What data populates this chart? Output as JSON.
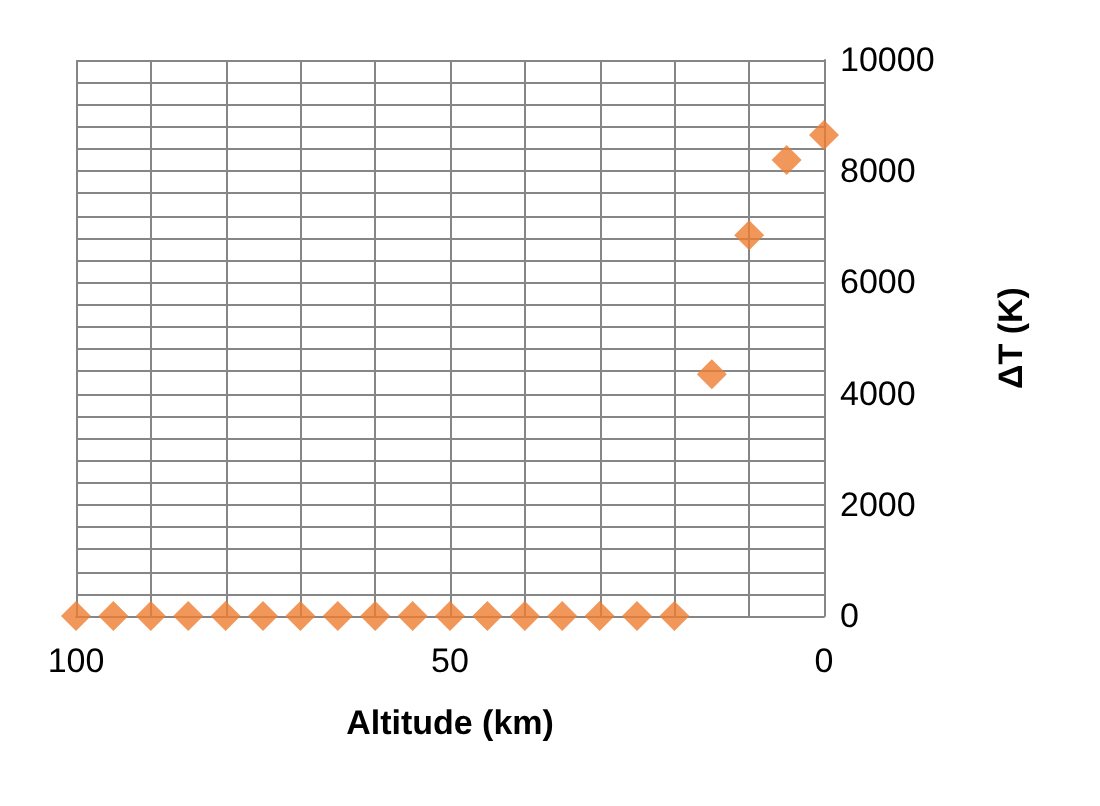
{
  "chart_data": {
    "type": "scatter",
    "xlabel": "Altitude (km)",
    "ylabel": "ΔT (K)",
    "x": [
      100,
      95,
      90,
      85,
      80,
      75,
      70,
      65,
      60,
      55,
      50,
      45,
      40,
      35,
      30,
      25,
      20,
      15,
      10,
      5,
      0
    ],
    "series": [
      {
        "color": "#ed7d31",
        "values": [
          0,
          0,
          0,
          0,
          0,
          0,
          0,
          0,
          0,
          0,
          0,
          0,
          0,
          0,
          0,
          0,
          0,
          4350,
          6850,
          8200,
          8650
        ]
      }
    ],
    "xlim": [
      100,
      0
    ],
    "xticks": [
      100,
      {
        "value": 90,
        "label": null
      },
      {
        "value": 80,
        "label": null
      },
      {
        "value": 70,
        "label": null
      },
      {
        "value": 60,
        "label": null
      },
      50,
      {
        "value": 40,
        "label": null
      },
      {
        "value": 30,
        "label": null
      },
      {
        "value": 20,
        "label": null
      },
      {
        "value": 10,
        "label": null
      },
      0
    ],
    "ylim": [
      0,
      10000
    ],
    "yticks": [
      0,
      {
        "value": 400,
        "label": null
      },
      {
        "value": 800,
        "label": null
      },
      {
        "value": 1200,
        "label": null
      },
      {
        "value": 1600,
        "label": null
      },
      2000,
      {
        "value": 2400,
        "label": null
      },
      {
        "value": 2800,
        "label": null
      },
      {
        "value": 3200,
        "label": null
      },
      {
        "value": 3600,
        "label": null
      },
      4000,
      {
        "value": 4400,
        "label": null
      },
      {
        "value": 4800,
        "label": null
      },
      {
        "value": 5200,
        "label": null
      },
      {
        "value": 5600,
        "label": null
      },
      6000,
      {
        "value": 6400,
        "label": null
      },
      {
        "value": 6800,
        "label": null
      },
      {
        "value": 7200,
        "label": null
      },
      {
        "value": 7600,
        "label": null
      },
      8000,
      {
        "value": 8400,
        "label": null
      },
      {
        "value": 8800,
        "label": null
      },
      {
        "value": 9200,
        "label": null
      },
      {
        "value": 9600,
        "label": null
      },
      10000
    ],
    "grid": true,
    "marker": "diamond"
  }
}
